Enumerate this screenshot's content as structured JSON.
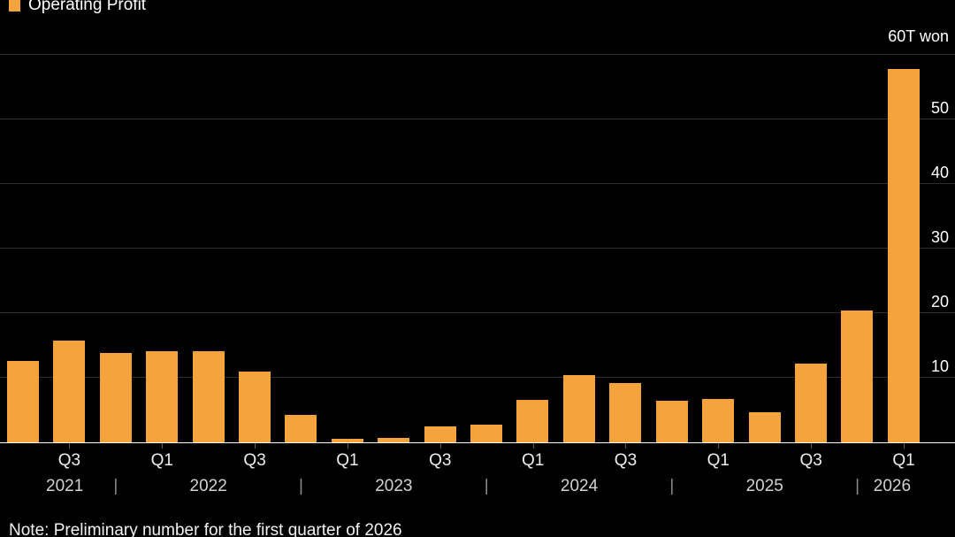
{
  "legend": {
    "label": "Operating Profit"
  },
  "note": "Note: Preliminary number for the first quarter of 2026",
  "colors": {
    "background": "#000000",
    "bar": "#f5a33c",
    "gridline": "#2e2e2e",
    "baseline": "#ffffff",
    "text": "#ffffff"
  },
  "chart_data": {
    "type": "bar",
    "title": "Operating Profit",
    "unit_label": "60T won",
    "unit": "trillion won",
    "ylim": [
      0,
      60
    ],
    "grid": "horizontal",
    "legend_position": "top-left",
    "gridlines": [
      10,
      20,
      30,
      40,
      50,
      60
    ],
    "y_tick_labels": [
      10,
      20,
      30,
      40,
      50
    ],
    "categories": [
      "Q2 2021",
      "Q3 2021",
      "Q4 2021",
      "Q1 2022",
      "Q2 2022",
      "Q3 2022",
      "Q4 2022",
      "Q1 2023",
      "Q2 2023",
      "Q3 2023",
      "Q4 2023",
      "Q1 2024",
      "Q2 2024",
      "Q3 2024",
      "Q4 2024",
      "Q1 2025",
      "Q2 2025",
      "Q3 2025",
      "Q4 2025",
      "Q1 2026"
    ],
    "values": [
      12.6,
      15.8,
      13.9,
      14.1,
      14.1,
      10.9,
      4.3,
      0.6,
      0.7,
      2.4,
      2.8,
      6.6,
      10.4,
      9.2,
      6.5,
      6.7,
      4.7,
      12.2,
      20.4,
      57.8
    ],
    "quarter_ticks": [
      {
        "label": "Q3",
        "index": 1
      },
      {
        "label": "Q1",
        "index": 3
      },
      {
        "label": "Q3",
        "index": 5
      },
      {
        "label": "Q1",
        "index": 7
      },
      {
        "label": "Q3",
        "index": 9
      },
      {
        "label": "Q1",
        "index": 11
      },
      {
        "label": "Q3",
        "index": 13
      },
      {
        "label": "Q1",
        "index": 15
      },
      {
        "label": "Q3",
        "index": 17
      },
      {
        "label": "Q1",
        "index": 19
      }
    ],
    "year_labels": [
      {
        "label": "2021",
        "index": 0.9
      },
      {
        "label": "2022",
        "index": 4
      },
      {
        "label": "2023",
        "index": 8
      },
      {
        "label": "2024",
        "index": 12
      },
      {
        "label": "2025",
        "index": 16
      },
      {
        "label": "2026",
        "index": 18.75
      }
    ],
    "year_separators": [
      2,
      6,
      10,
      14,
      18
    ],
    "note": "Note: Preliminary number for the first quarter of 2026"
  }
}
